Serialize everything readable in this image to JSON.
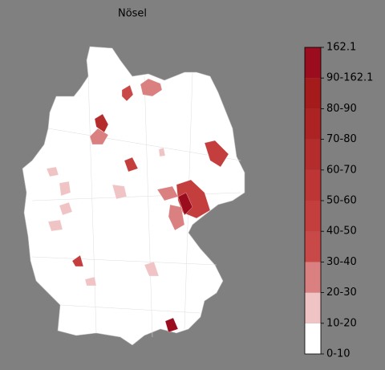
{
  "title": "Nösel",
  "colorbar": {
    "labels": [
      "0-10",
      "10-20",
      "20-30",
      "30-40",
      "40-50",
      "50-60",
      "60-70",
      "70-80",
      "80-90",
      "90-162.1",
      "162.1"
    ],
    "colors": [
      "#ffffff",
      "#f0c4c4",
      "#db8080",
      "#c94848",
      "#c43e3e",
      "#bd3535",
      "#b52c2c",
      "#ad2323",
      "#a51a1a",
      "#9a0c1e"
    ]
  }
}
